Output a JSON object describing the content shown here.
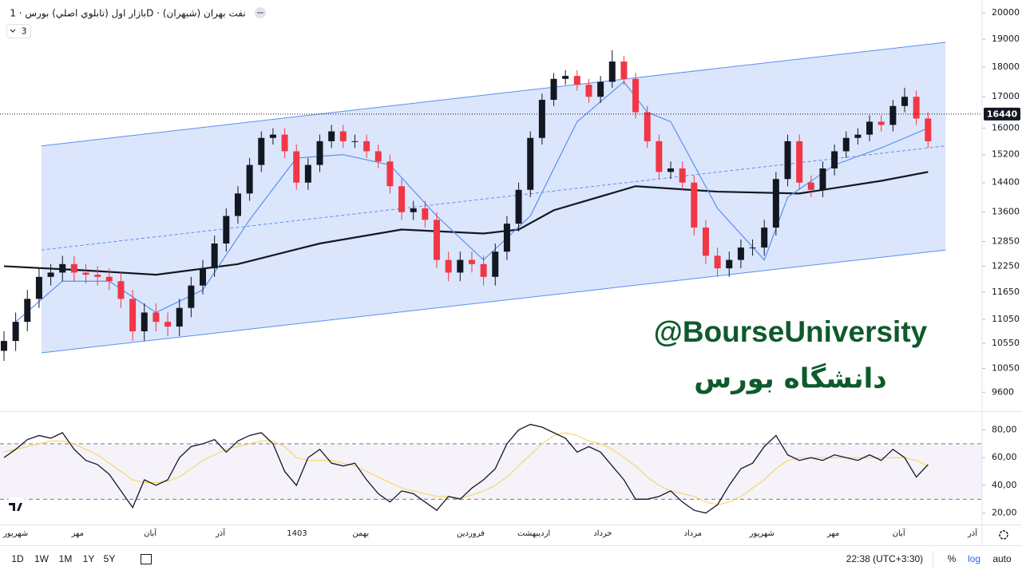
{
  "chart_data": [
    {
      "type": "candlestick",
      "title": "بازار اول (تابلوي اصلي) بورس · 1D · نفت بهران (شبهران)",
      "log": true,
      "grid": false,
      "ylim": [
        9255,
        20500
      ],
      "yticks": [
        20000,
        19000,
        18000,
        17000,
        16000,
        15200,
        14400,
        13600,
        12850,
        12250,
        11650,
        11050,
        10550,
        10050,
        9600
      ],
      "xlim": [
        -0.34,
        83.62
      ],
      "xticks": [
        {
          "value": 1,
          "label": "شهریور"
        },
        {
          "value": 6.3,
          "label": "مهر"
        },
        {
          "value": 12.5,
          "label": "آبان"
        },
        {
          "value": 18.5,
          "label": "آذر"
        },
        {
          "value": 25.05,
          "label": "1403"
        },
        {
          "value": 30.5,
          "label": "بهمن"
        },
        {
          "value": 39.9,
          "label": "فروردین"
        },
        {
          "value": 45.3,
          "label": "اردیبهشت"
        },
        {
          "value": 51.2,
          "label": "خرداد"
        },
        {
          "value": 58.9,
          "label": "مرداد"
        },
        {
          "value": 64.8,
          "label": "شهریور"
        },
        {
          "value": 70.9,
          "label": "مهر"
        },
        {
          "value": 76.5,
          "label": "آبان"
        },
        {
          "value": 82.8,
          "label": "آذر"
        }
      ],
      "up_color": "#131722",
      "down_color": "#f23645",
      "open": [
        10400,
        10600,
        11000,
        11500,
        12000,
        12100,
        12300,
        12100,
        12050,
        12000,
        11900,
        11500,
        10800,
        11200,
        11000,
        10900,
        11300,
        11800,
        12200,
        12800,
        13500,
        14100,
        14900,
        15700,
        15800,
        15300,
        14400,
        14900,
        15600,
        15900,
        15600,
        15600,
        15300,
        15000,
        14300,
        13600,
        13700,
        13400,
        12400,
        12100,
        12400,
        12300,
        12000,
        12600,
        13300,
        14200,
        15700,
        16900,
        17600,
        17700,
        17400,
        17000,
        17500,
        18200,
        17600,
        16500,
        15600,
        14700,
        14800,
        14400,
        13200,
        12500,
        12200,
        12400,
        12700,
        12700,
        13200,
        14500,
        15600,
        14400,
        14200,
        14800,
        15300,
        15700,
        15800,
        16200,
        16100,
        16700,
        17000,
        16300
      ],
      "high": [
        10800,
        11200,
        11700,
        12200,
        12300,
        12500,
        12500,
        12300,
        12250,
        12200,
        12100,
        11700,
        11400,
        11400,
        11200,
        11500,
        12000,
        12400,
        13000,
        13700,
        14300,
        15100,
        15900,
        16000,
        16000,
        15500,
        15100,
        15800,
        16100,
        16100,
        15800,
        15800,
        15500,
        15200,
        14500,
        13900,
        13900,
        13600,
        12600,
        12600,
        12600,
        12500,
        12800,
        13500,
        14400,
        15900,
        17100,
        17800,
        17900,
        17900,
        17600,
        17700,
        18600,
        18400,
        17800,
        16700,
        15800,
        15000,
        15000,
        14600,
        13400,
        12700,
        12600,
        12900,
        12900,
        13400,
        14700,
        15800,
        15800,
        14600,
        15000,
        15500,
        15900,
        16000,
        16400,
        16400,
        16900,
        17300,
        17200,
        16500
      ],
      "low": [
        10200,
        10400,
        10800,
        11300,
        11800,
        11900,
        11900,
        11850,
        11800,
        11700,
        11300,
        10600,
        10600,
        10800,
        10700,
        10700,
        11100,
        11600,
        12000,
        12600,
        13300,
        13900,
        14700,
        15500,
        15100,
        14200,
        14200,
        14700,
        15400,
        15400,
        15400,
        15100,
        14800,
        14100,
        13400,
        13400,
        13200,
        12200,
        11900,
        11900,
        12100,
        11800,
        11800,
        12400,
        13100,
        14000,
        15500,
        16700,
        17400,
        17200,
        16800,
        16800,
        17300,
        17400,
        16300,
        15400,
        14500,
        14500,
        14200,
        13000,
        12300,
        12000,
        12000,
        12200,
        12500,
        12500,
        13000,
        14300,
        14200,
        14000,
        14000,
        14600,
        15100,
        15500,
        15600,
        15900,
        15900,
        16500,
        16100,
        15400
      ],
      "close": [
        10600,
        11000,
        11500,
        12000,
        12100,
        12300,
        12100,
        12050,
        12000,
        11900,
        11500,
        10800,
        11200,
        11000,
        10900,
        11300,
        11800,
        12200,
        12800,
        13500,
        14100,
        14900,
        15700,
        15800,
        15300,
        14400,
        14900,
        15600,
        15900,
        15600,
        15600,
        15300,
        15000,
        14300,
        13600,
        13700,
        13400,
        12400,
        12100,
        12400,
        12300,
        12000,
        12600,
        13300,
        14200,
        15700,
        16900,
        17600,
        17700,
        17400,
        17000,
        17500,
        18200,
        17600,
        16500,
        15600,
        14700,
        14800,
        14400,
        13200,
        12500,
        12200,
        12400,
        12700,
        12700,
        13200,
        14500,
        15600,
        14400,
        14200,
        14800,
        15300,
        15700,
        15800,
        16200,
        16100,
        16700,
        17000,
        16300,
        15600
      ],
      "last_price": 16440,
      "channel": {
        "x": [
          3.2,
          80.5
        ],
        "upper": [
          15460,
          18890
        ],
        "middle": [
          12640,
          15460
        ],
        "lower": [
          10360,
          12640
        ],
        "color": "#5b8ff0"
      },
      "lines": [
        {
          "color": "#131722",
          "width": 2.2,
          "x": [
            0,
            7,
            13,
            20,
            27,
            34,
            41,
            44,
            47,
            54,
            61,
            68,
            75,
            79
          ],
          "values": [
            12250,
            12150,
            12050,
            12300,
            12800,
            13150,
            13050,
            13150,
            13650,
            14300,
            14150,
            14100,
            14450,
            14700
          ]
        },
        {
          "color": "#5b8ff0",
          "width": 1.2,
          "x": [
            1,
            5,
            9,
            13,
            17,
            21,
            25,
            29,
            33,
            37,
            41,
            45,
            49,
            53,
            55,
            57,
            61,
            65,
            67,
            71,
            75,
            79
          ],
          "values": [
            11000,
            11900,
            11900,
            11200,
            11700,
            13400,
            15100,
            15200,
            14900,
            13500,
            12400,
            13500,
            16200,
            17500,
            16500,
            16200,
            13700,
            12400,
            14000,
            14900,
            15400,
            16000
          ]
        }
      ]
    },
    {
      "type": "line",
      "ylim": [
        12.9,
        92.4
      ],
      "yticks": [
        {
          "value": 80,
          "label": "80,00"
        },
        {
          "value": 60,
          "label": "60,00"
        },
        {
          "value": 40,
          "label": "40,00"
        },
        {
          "value": 20,
          "label": "20,00"
        }
      ],
      "xlim": [
        -0.34,
        83.62
      ],
      "bands": [
        30,
        70
      ],
      "band_color": "#7e57c2",
      "series": [
        {
          "color": "#131722",
          "values": [
            60,
            66,
            73,
            76,
            74,
            78,
            66,
            58,
            55,
            48,
            36,
            24,
            44,
            40,
            44,
            60,
            68,
            70,
            73,
            64,
            72,
            76,
            78,
            70,
            50,
            40,
            60,
            66,
            56,
            54,
            56,
            44,
            34,
            28,
            36,
            34,
            28,
            22,
            32,
            30,
            38,
            44,
            52,
            70,
            80,
            84,
            82,
            78,
            74,
            64,
            68,
            64,
            54,
            44,
            30,
            30,
            32,
            36,
            28,
            22,
            20,
            26,
            40,
            52,
            56,
            68,
            76,
            62,
            58,
            60,
            58,
            62,
            60,
            58,
            62,
            58,
            66,
            60,
            46,
            55
          ]
        },
        {
          "color": "#f7d34c",
          "values": [
            64,
            66,
            68,
            70,
            72,
            72,
            70,
            66,
            62,
            56,
            50,
            44,
            42,
            42,
            43,
            46,
            52,
            58,
            62,
            66,
            68,
            70,
            72,
            72,
            68,
            60,
            58,
            58,
            58,
            56,
            54,
            50,
            46,
            42,
            38,
            36,
            34,
            32,
            32,
            31,
            33,
            36,
            40,
            46,
            54,
            62,
            70,
            76,
            78,
            76,
            72,
            70,
            66,
            60,
            54,
            46,
            40,
            36,
            34,
            32,
            28,
            26,
            28,
            32,
            38,
            44,
            52,
            58,
            60,
            60,
            60,
            60,
            60,
            60,
            60,
            60,
            60,
            60,
            58,
            54
          ]
        }
      ]
    }
  ],
  "ui": {
    "indicators": "3",
    "watermark": [
      "@BourseUniversity",
      "دانشگاه بورس"
    ],
    "ranges": [
      "1D",
      "1W",
      "1M",
      "1Y",
      "5Y"
    ],
    "clock": "22:38 (UTC+3:30)",
    "percent": "%",
    "log": "log",
    "auto": "auto"
  }
}
